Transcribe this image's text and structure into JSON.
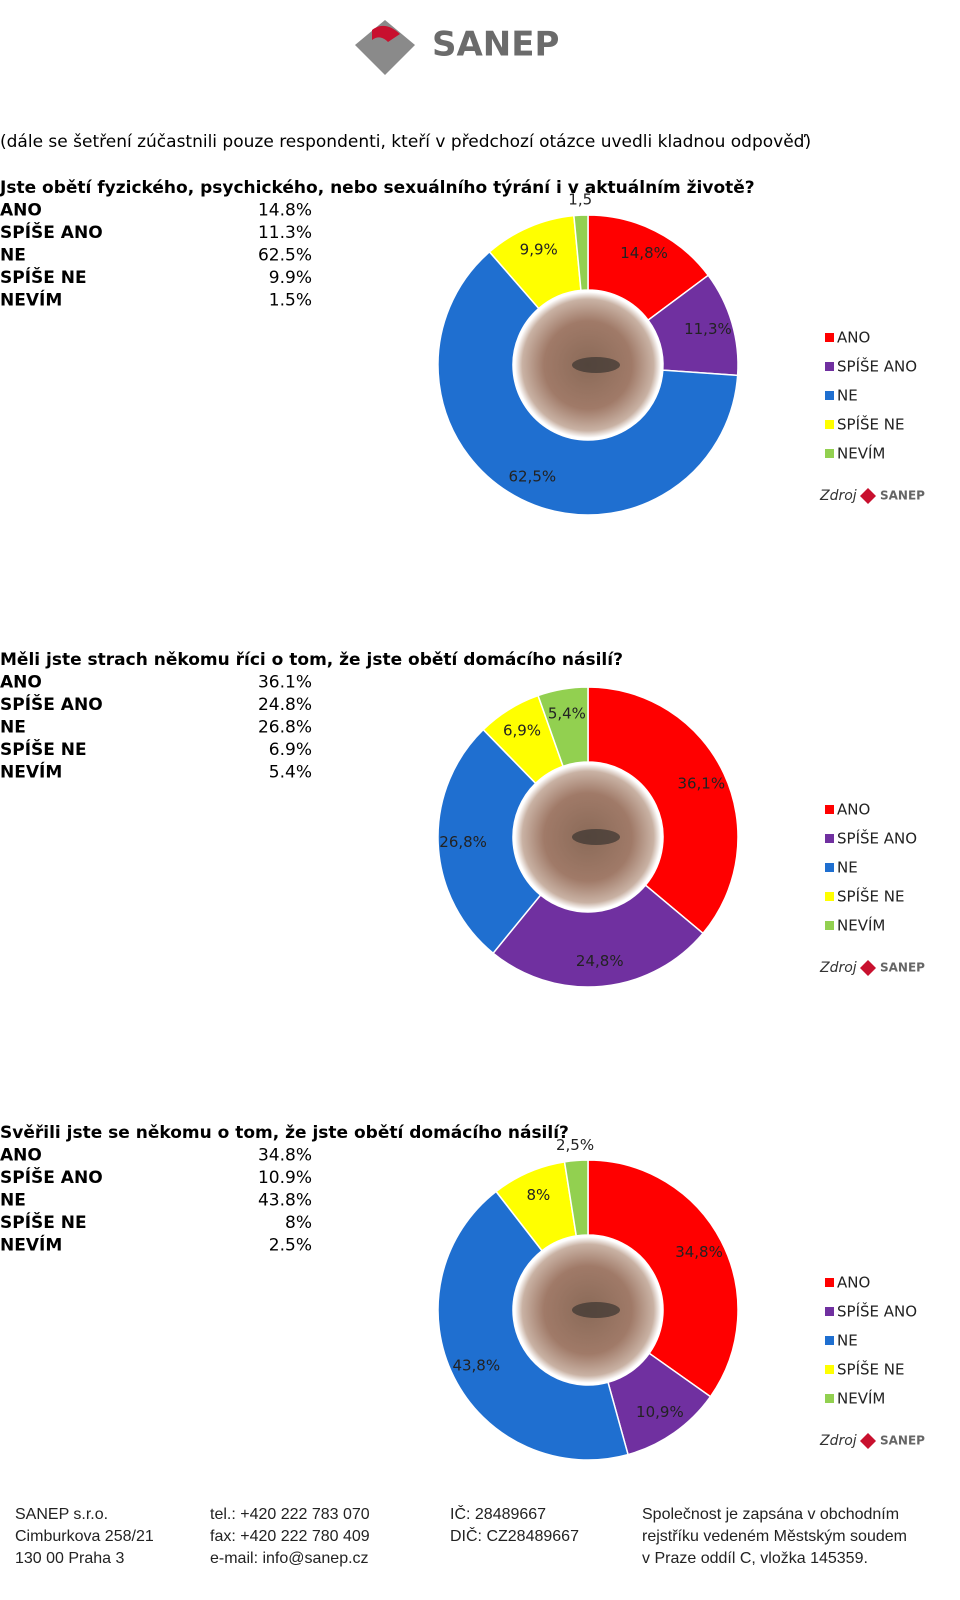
{
  "header": {
    "logo": "SANEP",
    "note": "(dále se šetření zúčastnili pouze respondenti, kteří v předchozí otázce uvedli kladnou odpověď)"
  },
  "tables": [
    {
      "rows": [
        [
          "ANO",
          "14.8%"
        ],
        [
          "SPÍŠE ANO",
          "11.3%"
        ],
        [
          "NE",
          "62.5%"
        ],
        [
          "SPÍŠE NE",
          "9.9%"
        ],
        [
          "NEVÍM",
          "1.5%"
        ]
      ]
    },
    {
      "rows": [
        [
          "ANO",
          "36.1%"
        ],
        [
          "SPÍŠE ANO",
          "24.8%"
        ],
        [
          "NE",
          "26.8%"
        ],
        [
          "SPÍŠE NE",
          "6.9%"
        ],
        [
          "NEVÍM",
          "5.4%"
        ]
      ]
    },
    {
      "rows": [
        [
          "ANO",
          "34.8%"
        ],
        [
          "SPÍŠE ANO",
          "10.9%"
        ],
        [
          "NE",
          "43.8%"
        ],
        [
          "SPÍŠE NE",
          "8%"
        ],
        [
          "NEVÍM",
          "2.5%"
        ]
      ]
    }
  ],
  "chart_data": [
    {
      "type": "donut",
      "title": "Jste obětí fyzického, psychického, nebo sexuálního týrání i v aktuálním životě?",
      "categories": [
        "ANO",
        "SPÍŠE ANO",
        "NE",
        "SPÍŠE NE",
        "NEVÍM"
      ],
      "values": [
        14.8,
        11.3,
        62.5,
        9.9,
        1.5
      ],
      "value_labels": [
        "14,8%",
        "11,3%",
        "62,5%",
        "9,9%",
        "1,5"
      ],
      "colors": [
        "#ff0000",
        "#7030a0",
        "#1f6fd0",
        "#ffff00",
        "#92d050"
      ],
      "source": "Zdroj",
      "source_brand": "SANEP"
    },
    {
      "type": "donut",
      "title": "Měli jste strach někomu říci o tom, že jste obětí domácího násilí?",
      "categories": [
        "ANO",
        "SPÍŠE ANO",
        "NE",
        "SPÍŠE NE",
        "NEVÍM"
      ],
      "values": [
        36.1,
        24.8,
        26.8,
        6.9,
        5.4
      ],
      "value_labels": [
        "36,1%",
        "24,8%",
        "26,8%",
        "6,9%",
        "5,4%"
      ],
      "colors": [
        "#ff0000",
        "#7030a0",
        "#1f6fd0",
        "#ffff00",
        "#92d050"
      ],
      "source": "Zdroj",
      "source_brand": "SANEP"
    },
    {
      "type": "donut",
      "title": "Svěřili jste se někomu o tom, že jste obětí domácího násilí?",
      "categories": [
        "ANO",
        "SPÍŠE ANO",
        "NE",
        "SPÍŠE NE",
        "NEVÍM"
      ],
      "values": [
        34.8,
        10.9,
        43.8,
        8,
        2.5
      ],
      "value_labels": [
        "34,8%",
        "10,9%",
        "43,8%",
        "8%",
        "2,5%"
      ],
      "colors": [
        "#ff0000",
        "#7030a0",
        "#1f6fd0",
        "#ffff00",
        "#92d050"
      ],
      "source": "Zdroj",
      "source_brand": "SANEP"
    }
  ],
  "footer": {
    "columns": [
      [
        "SANEP s.r.o.",
        "Cimburkova 258/21",
        "130 00 Praha 3"
      ],
      [
        "tel.: +420 222 783 070",
        "fax: +420 222 780 409",
        "e-mail: info@sanep.cz"
      ],
      [
        "IČ:  28489667",
        "DIČ: CZ28489667",
        ""
      ],
      [
        "Společnost je zapsána v obchodním",
        "rejstříku vedeném Městským soudem",
        "v Praze oddíl C, vložka 145359."
      ]
    ]
  }
}
